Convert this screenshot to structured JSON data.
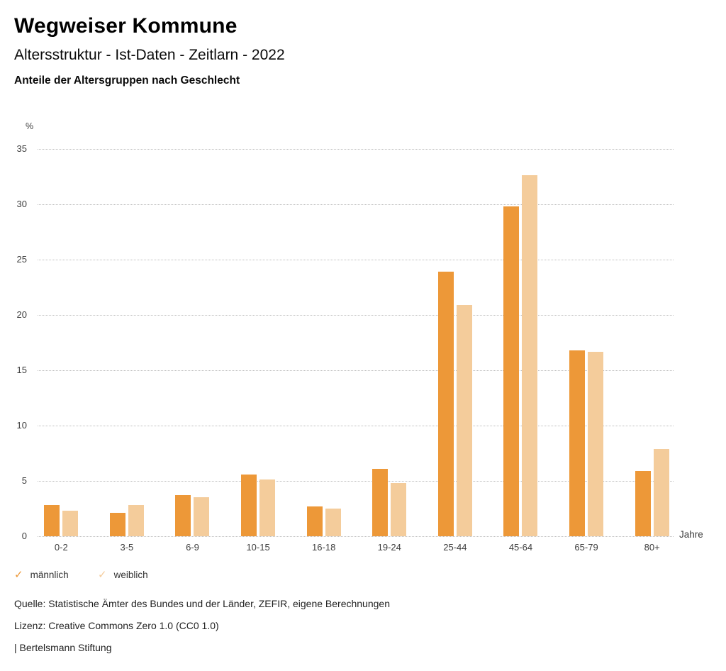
{
  "header": {
    "title": "Wegweiser Kommune",
    "subtitle": "Altersstruktur - Ist-Daten - Zeitlarn - 2022",
    "chart_heading": "Anteile der Altersgruppen nach Geschlecht"
  },
  "chart_data": {
    "type": "bar",
    "title": "Anteile der Altersgruppen nach Geschlecht",
    "categories": [
      "0-2",
      "3-5",
      "6-9",
      "10-15",
      "16-18",
      "19-24",
      "25-44",
      "45-64",
      "65-79",
      "80+"
    ],
    "series": [
      {
        "name": "männlich",
        "color": "#ED9838",
        "values": [
          2.8,
          2.1,
          3.7,
          5.6,
          2.7,
          6.1,
          23.9,
          29.8,
          16.8,
          5.9
        ]
      },
      {
        "name": "weiblich",
        "color": "#F4CC9B",
        "values": [
          2.3,
          2.8,
          3.5,
          5.1,
          2.5,
          4.8,
          20.9,
          32.6,
          16.7,
          7.9
        ]
      }
    ],
    "ylabel": "%",
    "xlabel": "Jahre",
    "ylim": [
      0,
      35
    ],
    "yticks": [
      35,
      30,
      25,
      20,
      15,
      10,
      5,
      0
    ],
    "grid": "horizontal-dotted",
    "legend_position": "bottom-left"
  },
  "legend": {
    "check_icon_glyph": "✓"
  },
  "footer": {
    "source": "Quelle: Statistische Ämter des Bundes und der Länder, ZEFIR, eigene Berechnungen",
    "license": "Lizenz: Creative Commons Zero 1.0 (CC0 1.0)",
    "branding": "| Bertelsmann Stiftung"
  }
}
